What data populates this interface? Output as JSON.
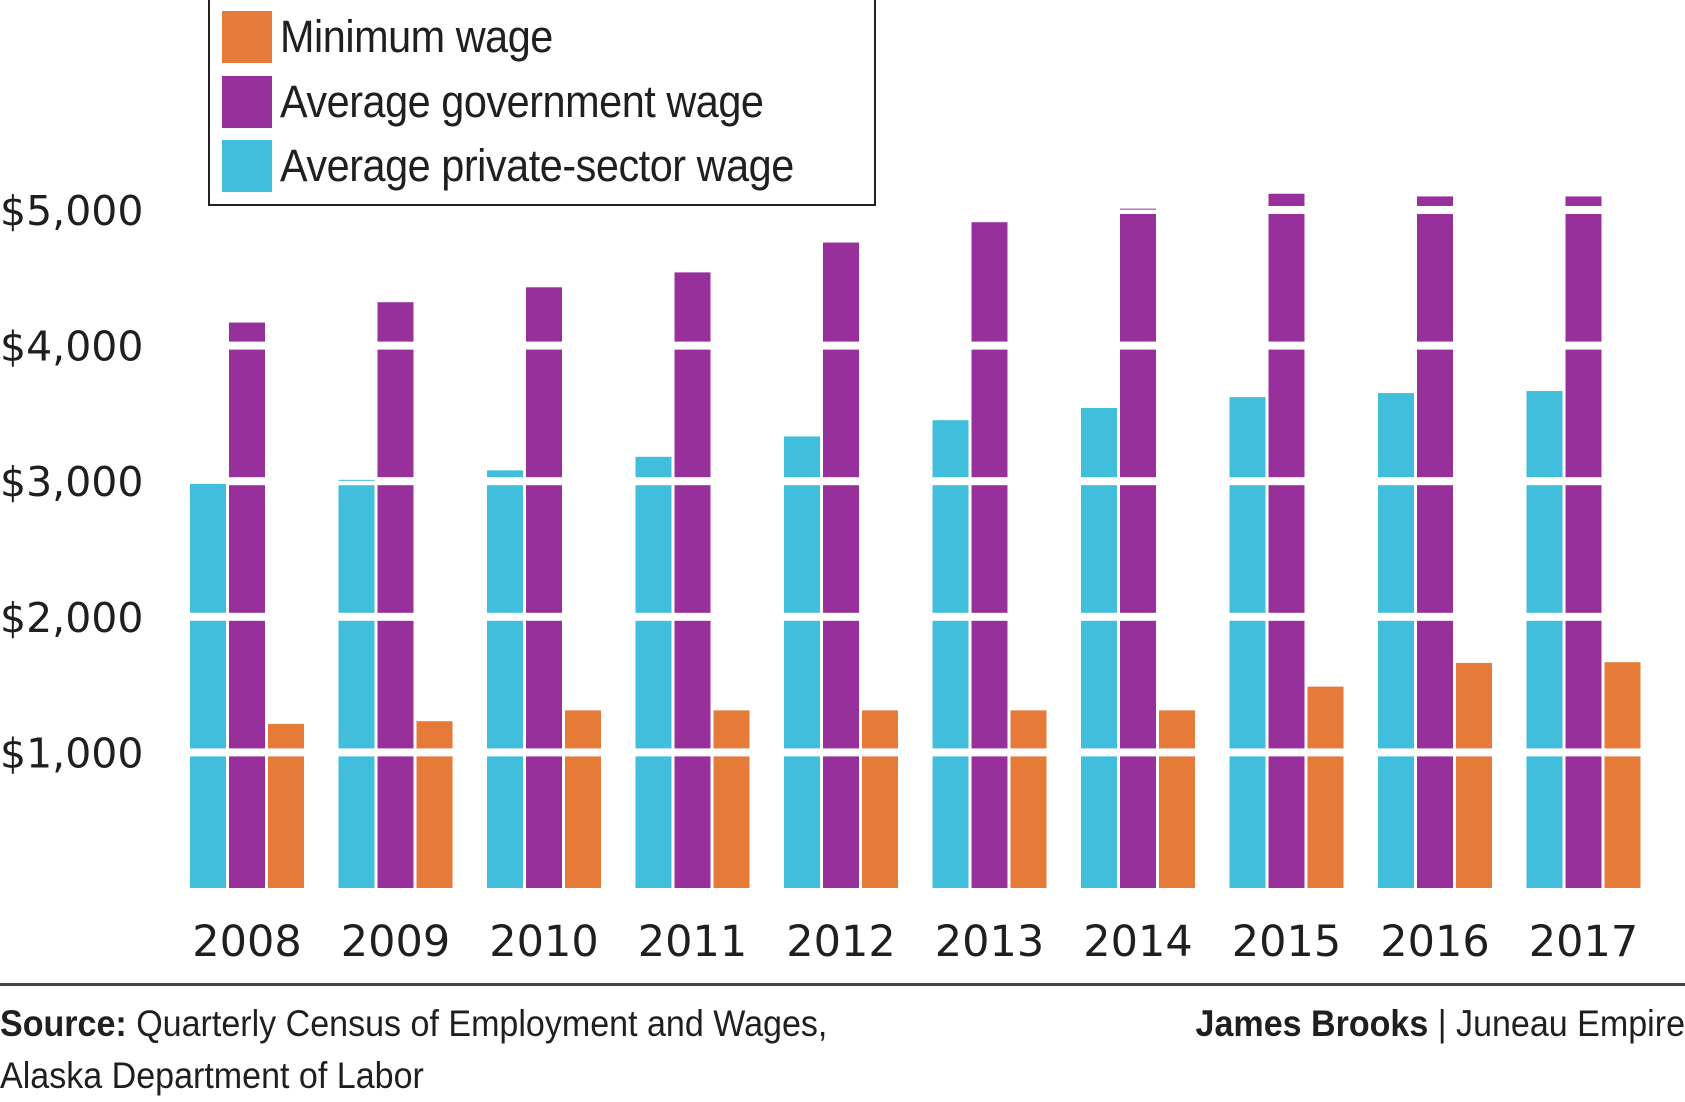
{
  "chart_data": {
    "type": "bar",
    "title": "",
    "xlabel": "",
    "ylabel": "",
    "categories": [
      "2008",
      "2009",
      "2010",
      "2011",
      "2012",
      "2013",
      "2014",
      "2015",
      "2016",
      "2017"
    ],
    "series": [
      {
        "name": "Average private-sector wage",
        "color": "#40BEDC",
        "values": [
          2980,
          3010,
          3080,
          3180,
          3330,
          3450,
          3540,
          3620,
          3650,
          3665
        ]
      },
      {
        "name": "Average government wage",
        "color": "#98309B",
        "values": [
          4170,
          4320,
          4430,
          4540,
          4760,
          4910,
          5010,
          5120,
          5100,
          5100
        ]
      },
      {
        "name": "Minimum wage",
        "color": "#E67A38",
        "values": [
          1210,
          1230,
          1310,
          1310,
          1310,
          1310,
          1310,
          1485,
          1660,
          1665
        ]
      }
    ],
    "ylim": [
      0,
      5000
    ],
    "yticks": [
      1000,
      2000,
      3000,
      4000,
      5000
    ],
    "ytick_labels": [
      "$1,000",
      "$2,000",
      "$3,000",
      "$4,000",
      "$5,000"
    ],
    "grid": false,
    "segment_breaks_every": 1000,
    "legend": {
      "position": "top-left",
      "entries": [
        {
          "label": "Minimum wage",
          "color": "#E67A38"
        },
        {
          "label": "Average government wage",
          "color": "#98309B"
        },
        {
          "label": "Average private-sector wage",
          "color": "#40BEDC"
        }
      ]
    }
  },
  "footer": {
    "source_label": "Source:",
    "source_line1": " Quarterly Census of Employment and Wages,",
    "source_line2": "Alaska Department of Labor",
    "author": "James Brooks",
    "separator": " | ",
    "publication": "Juneau Empire"
  }
}
